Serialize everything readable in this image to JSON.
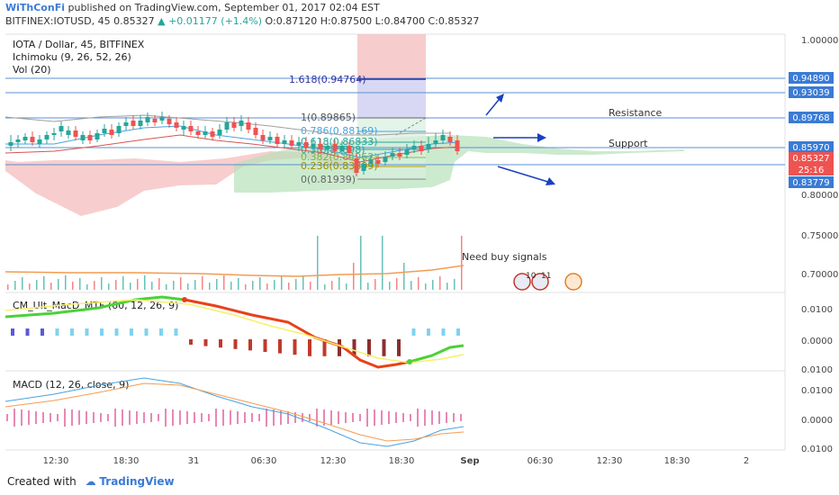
{
  "header": {
    "author": "WiThConFi",
    "published": "published on TradingView.com, September 01, 2017 02:04 EST",
    "symbol": "BITFINEX:IOTUSD, 45",
    "price": "0.85327",
    "change": "+0.01177 (+1.4%)",
    "ohlc": "O:0.87120 H:0.87500 L:0.84700 C:0.85327"
  },
  "legend": {
    "title": "IOTA / Dollar, 45, BITFINEX",
    "ichimoku": "Ichimoku (9, 26, 52, 26)",
    "vol": "Vol (20)",
    "cm": "CM_Ult_MacD_MTF (60, 12, 26, 9)",
    "macd": "MACD (12, 26, close, 9)"
  },
  "footer": {
    "created": "Created with",
    "brand": "TradingView"
  },
  "colors": {
    "up": "#26a69a",
    "down": "#ef5350",
    "hline": "#5b8fd6",
    "cloud_up": "#b7e1b9",
    "cloud_down": "#f5c2c0",
    "fib_box_top": "#f2b8b6",
    "fib_box_mid": "#c7c8f0",
    "price_tag_blue": "#3a7bd5",
    "price_tag_red": "#ef5350",
    "macd_line": "#4aa3df",
    "signal_line": "#f39c52"
  },
  "chart_data": {
    "type": "candlestick",
    "x_ticks": [
      "12:30",
      "18:30",
      "31",
      "06:30",
      "12:30",
      "18:30",
      "Sep",
      "06:30",
      "12:30",
      "18:30",
      "2"
    ],
    "price_axis": [
      "1.00000",
      "0.80000",
      "0.75000",
      "0.70000"
    ],
    "price_labels": [
      {
        "value": "0.94890",
        "kind": "blue"
      },
      {
        "value": "0.93039",
        "kind": "blue"
      },
      {
        "value": "0.89768",
        "kind": "blue"
      },
      {
        "value": "0.85970",
        "kind": "blue"
      },
      {
        "value": "0.85327",
        "kind": "red"
      },
      {
        "value": "25:16",
        "kind": "red"
      },
      {
        "value": "0.83779",
        "kind": "blue"
      }
    ],
    "fib_levels": [
      {
        "label": "1.618(0.94764)"
      },
      {
        "label": "1(0.89865)"
      },
      {
        "label": "0.786(0.88169)"
      },
      {
        "label": "0.618(0.86833)"
      },
      {
        "label": "0.5(0.85898)"
      },
      {
        "label": "0.382(0.84962)"
      },
      {
        "label": "0.236(0.83809)"
      },
      {
        "label": "0(0.81939)"
      }
    ],
    "annotations": [
      "Resistance",
      "Support",
      "Need buy signals"
    ],
    "event_icons": [
      "10",
      "11"
    ],
    "cm_axis": [
      "0.0100",
      "0.0000",
      "0.0100"
    ],
    "macd_axis": [
      "0.0100",
      "0.0000",
      "0.0100"
    ]
  }
}
